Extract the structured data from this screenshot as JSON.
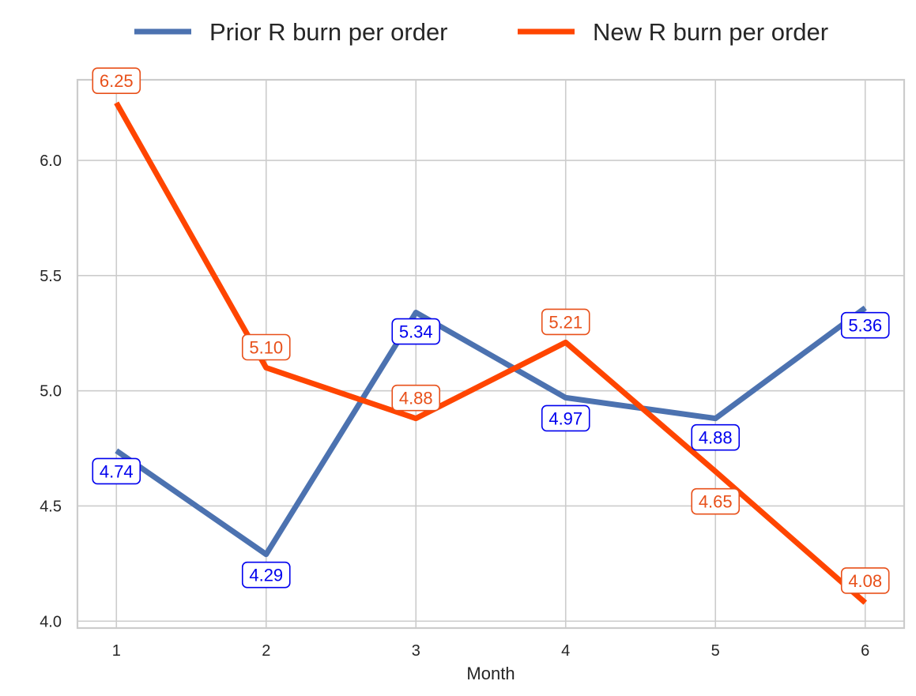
{
  "chart_data": {
    "type": "line",
    "x": [
      1,
      2,
      3,
      4,
      5,
      6
    ],
    "xlabel": "Month",
    "ylabel": "",
    "title": "",
    "xlim": [
      0.74,
      6.26
    ],
    "ylim": [
      3.97,
      6.35
    ],
    "yticks": [
      4.0,
      4.5,
      5.0,
      5.5,
      6.0
    ],
    "ytick_labels": [
      "4.0",
      "4.5",
      "5.0",
      "5.5",
      "6.0"
    ],
    "xtick_labels": [
      "1",
      "2",
      "3",
      "4",
      "5",
      "6"
    ],
    "grid": true,
    "legend_position": "top-center (outside plot)",
    "series": [
      {
        "name": "Prior R burn per order",
        "color": "#4c72b0",
        "label_color": "#0000ee",
        "values": [
          4.74,
          4.29,
          5.34,
          4.97,
          4.88,
          5.36
        ],
        "labels": [
          "4.74",
          "4.29",
          "5.34",
          "4.97",
          "4.88",
          "5.36"
        ]
      },
      {
        "name": "New R burn per order",
        "color": "#ff4500",
        "label_color": "#e8501a",
        "values": [
          6.25,
          5.1,
          4.88,
          5.21,
          4.65,
          4.08
        ],
        "labels": [
          "6.25",
          "5.10",
          "4.88",
          "5.21",
          "4.65",
          "4.08"
        ]
      }
    ]
  }
}
